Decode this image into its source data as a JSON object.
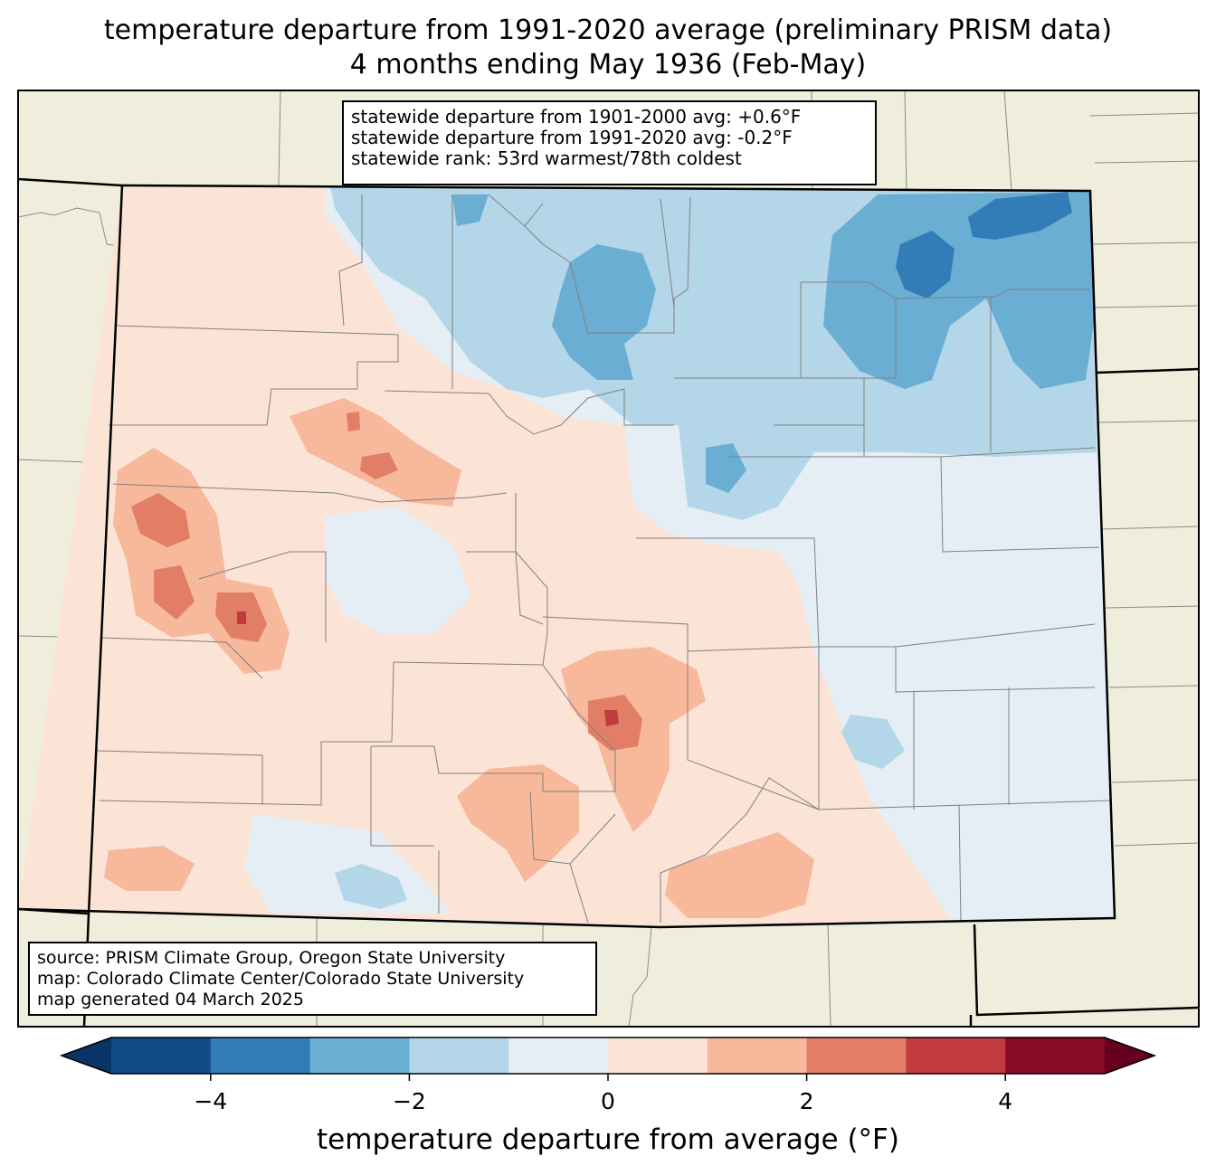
{
  "title": {
    "line1": "temperature departure from 1991-2020 average (preliminary PRISM data)",
    "line2": "4 months ending May 1936 (Feb-May)"
  },
  "stats": {
    "line1": "statewide departure from 1901-2000 avg: +0.6°F",
    "line2": "statewide departure from 1991-2020 avg: -0.2°F",
    "line3": "statewide rank: 53rd warmest/78th coldest"
  },
  "credits": {
    "line1": "source: PRISM Climate Group, Oregon State University",
    "line2": "map: Colorado Climate Center/Colorado State University",
    "line3": "map generated 04 March 2025"
  },
  "colorbar": {
    "label": "temperature departure from average (°F)",
    "ticks": [
      "−4",
      "−2",
      "0",
      "2",
      "4"
    ],
    "bins": [
      {
        "from": -5,
        "to": -4,
        "color": "#134b87"
      },
      {
        "from": -4,
        "to": -3,
        "color": "#327cb7"
      },
      {
        "from": -3,
        "to": -2,
        "color": "#6aaed3"
      },
      {
        "from": -2,
        "to": -1,
        "color": "#b3d6e8"
      },
      {
        "from": -1,
        "to": 0,
        "color": "#e5eef5"
      },
      {
        "from": 0,
        "to": 1,
        "color": "#fbe4d6"
      },
      {
        "from": 1,
        "to": 2,
        "color": "#f7b89b"
      },
      {
        "from": 2,
        "to": 3,
        "color": "#e27e65"
      },
      {
        "from": 3,
        "to": 4,
        "color": "#c03a3e"
      },
      {
        "from": 4,
        "to": 5,
        "color": "#8a0b25"
      }
    ],
    "under_color": "#083466",
    "over_color": "#67001f"
  },
  "map": {
    "background_color": "#efeedc",
    "region": "Colorado"
  }
}
